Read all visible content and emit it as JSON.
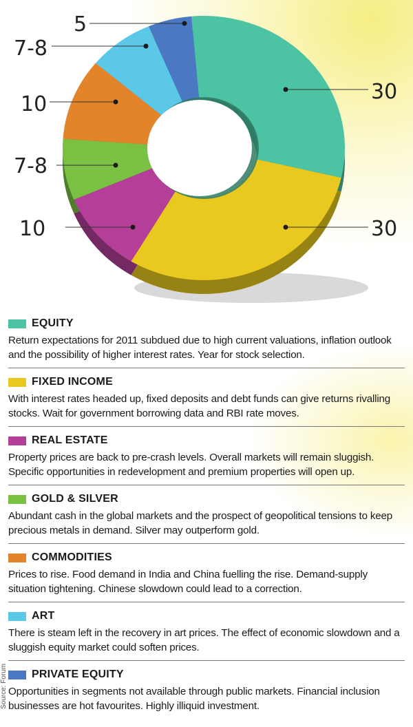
{
  "chart_data": {
    "type": "pie",
    "variant": "donut",
    "title": "",
    "slice_labels": [
      "30",
      "30",
      "10",
      "7-8",
      "10",
      "7-8",
      "5"
    ],
    "slices": [
      {
        "name": "EQUITY",
        "value": 30,
        "label": "30",
        "color": "#4cc3a2"
      },
      {
        "name": "FIXED INCOME",
        "value": 30,
        "label": "30",
        "color": "#e9c81f"
      },
      {
        "name": "REAL ESTATE",
        "value": 10,
        "label": "10",
        "color": "#b33f98"
      },
      {
        "name": "GOLD & SILVER",
        "value": 7.5,
        "label": "7-8",
        "color": "#7ac143"
      },
      {
        "name": "COMMODITIES",
        "value": 10,
        "label": "10",
        "color": "#e3832a"
      },
      {
        "name": "ART",
        "value": 7.5,
        "label": "7-8",
        "color": "#5bc8e8"
      },
      {
        "name": "PRIVATE EQUITY",
        "value": 5,
        "label": "5",
        "color": "#4a78c2"
      }
    ]
  },
  "legend": {
    "items": [
      {
        "title": "EQUITY",
        "color": "#4cc3a2",
        "desc": "Return expectations for 2011 subdued due to high current valuations, inflation outlook and the possibility of higher interest rates. Year for stock selection."
      },
      {
        "title": "FIXED INCOME",
        "color": "#e9c81f",
        "desc": "With interest rates headed up, fixed deposits and debt funds can give returns rivalling stocks. Wait for government borrowing data and RBI rate moves."
      },
      {
        "title": "REAL ESTATE",
        "color": "#b33f98",
        "desc": "Property prices are back to pre-crash levels. Overall markets will remain sluggish. Specific opportunities in redevelopment and premium properties will open up."
      },
      {
        "title": "GOLD & SILVER",
        "color": "#7ac143",
        "desc": "Abundant cash in the global markets and the prospect of geopolitical tensions to keep precious metals in demand. Silver may outperform gold."
      },
      {
        "title": "COMMODITIES",
        "color": "#e3832a",
        "desc": "Prices to rise. Food demand in India and China fuelling the rise. Demand-supply situation tightening. Chinese slowdown could lead to a correction."
      },
      {
        "title": "ART",
        "color": "#5bc8e8",
        "desc": "There is steam left in the recovery in art prices. The effect of economic slowdown and a sluggish equity market could soften prices."
      },
      {
        "title": "PRIVATE EQUITY",
        "color": "#4a78c2",
        "desc": "Opportunities in segments not available through public markets. Financial inclusion businesses are hot favourites. Highly illiquid investment."
      }
    ]
  },
  "source": "Source: Forum"
}
